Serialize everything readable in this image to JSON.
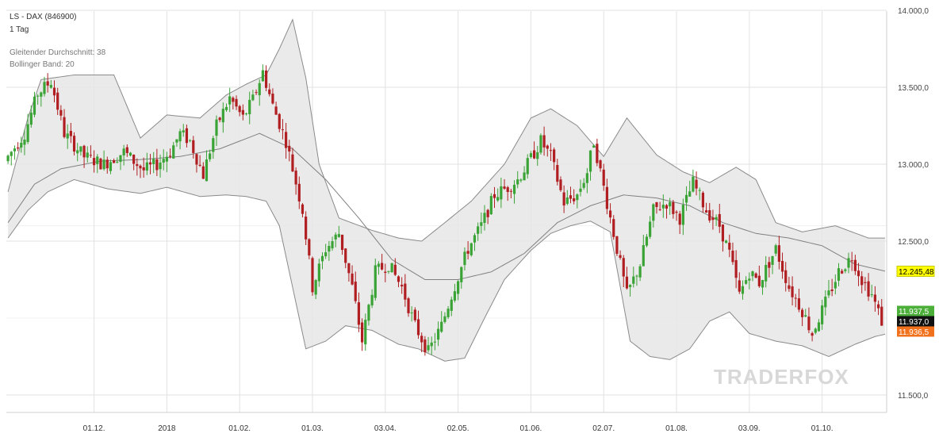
{
  "header": {
    "instrument": "LS - DAX (846900)",
    "interval": "1 Tag",
    "indicator_ma": "Gleitender Durchschnitt: 38",
    "indicator_bb": "Bollinger Band: 20"
  },
  "watermark": "TRADERFOX",
  "colors": {
    "bullish": "#3aa335",
    "bearish": "#b01e22",
    "band_fill": "#e6e6e6",
    "band_line": "#8a8a8a",
    "ma_line": "#808080",
    "grid": "#e2e2e2",
    "label_current_bg": "#ffff00",
    "label_bid_bg": "#4caf3a",
    "label_last_bg": "#111111",
    "label_ask_bg": "#f2711c"
  },
  "chart_data": {
    "type": "candlestick",
    "title": "LS - DAX (846900)",
    "interval": "1 Tag",
    "x_ticks": [
      "01.12.",
      "2018",
      "01.02.",
      "01.03.",
      "03.04.",
      "02.05.",
      "01.06.",
      "02.07.",
      "01.08.",
      "03.09.",
      "01.10."
    ],
    "y_ticks": [
      "14.000,0",
      "13.500,0",
      "13.000,0",
      "12.500,0",
      "11.500,0"
    ],
    "y_tick_values": [
      14000,
      13500,
      13000,
      12500,
      11500
    ],
    "ylim": [
      11350,
      14000
    ],
    "grid": true,
    "price_labels": [
      {
        "text": "12.245,48",
        "value": 12245.48,
        "role": "current"
      },
      {
        "text": "11.937,5",
        "value": 11937.5,
        "role": "bid"
      },
      {
        "text": "11.937,0",
        "value": 11937.0,
        "role": "last"
      },
      {
        "text": "11.936,5",
        "value": 11936.5,
        "role": "ask"
      }
    ],
    "price_path": [
      [
        0,
        13020
      ],
      [
        6,
        13200
      ],
      [
        10,
        13460
      ],
      [
        14,
        13540
      ],
      [
        18,
        13200
      ],
      [
        24,
        13050
      ],
      [
        30,
        13000
      ],
      [
        36,
        13080
      ],
      [
        42,
        12960
      ],
      [
        46,
        13000
      ],
      [
        50,
        13080
      ],
      [
        53,
        13200
      ],
      [
        56,
        13150
      ],
      [
        60,
        12930
      ],
      [
        64,
        13250
      ],
      [
        68,
        13430
      ],
      [
        72,
        13300
      ],
      [
        75,
        13420
      ],
      [
        78,
        13600
      ],
      [
        81,
        13380
      ],
      [
        85,
        13150
      ],
      [
        90,
        12700
      ],
      [
        93,
        12200
      ],
      [
        97,
        12450
      ],
      [
        101,
        12550
      ],
      [
        105,
        12200
      ],
      [
        108,
        11850
      ],
      [
        112,
        12300
      ],
      [
        116,
        12350
      ],
      [
        120,
        12200
      ],
      [
        124,
        11950
      ],
      [
        128,
        11780
      ],
      [
        132,
        11950
      ],
      [
        135,
        12150
      ],
      [
        140,
        12450
      ],
      [
        144,
        12600
      ],
      [
        148,
        12800
      ],
      [
        152,
        12850
      ],
      [
        155,
        12900
      ],
      [
        158,
        13000
      ],
      [
        162,
        13150
      ],
      [
        165,
        13050
      ],
      [
        169,
        12750
      ],
      [
        173,
        12800
      ],
      [
        176,
        12950
      ],
      [
        178,
        13150
      ],
      [
        181,
        12850
      ],
      [
        185,
        12450
      ],
      [
        188,
        12150
      ],
      [
        192,
        12350
      ],
      [
        196,
        12700
      ],
      [
        200,
        12750
      ],
      [
        204,
        12650
      ],
      [
        208,
        12880
      ],
      [
        212,
        12700
      ],
      [
        216,
        12600
      ],
      [
        219,
        12420
      ],
      [
        222,
        12150
      ],
      [
        225,
        12300
      ],
      [
        228,
        12230
      ],
      [
        233,
        12450
      ],
      [
        237,
        12200
      ],
      [
        241,
        12050
      ],
      [
        244,
        11900
      ],
      [
        248,
        12100
      ],
      [
        252,
        12300
      ],
      [
        256,
        12400
      ],
      [
        259,
        12250
      ],
      [
        262,
        12150
      ],
      [
        265,
        11980
      ]
    ],
    "ma38": [
      [
        0,
        12620
      ],
      [
        8,
        12870
      ],
      [
        16,
        12970
      ],
      [
        28,
        13020
      ],
      [
        40,
        13030
      ],
      [
        52,
        13050
      ],
      [
        64,
        13100
      ],
      [
        76,
        13200
      ],
      [
        86,
        13100
      ],
      [
        96,
        12900
      ],
      [
        106,
        12650
      ],
      [
        116,
        12380
      ],
      [
        126,
        12250
      ],
      [
        136,
        12250
      ],
      [
        146,
        12300
      ],
      [
        156,
        12420
      ],
      [
        166,
        12620
      ],
      [
        176,
        12730
      ],
      [
        186,
        12800
      ],
      [
        196,
        12780
      ],
      [
        206,
        12730
      ],
      [
        216,
        12620
      ],
      [
        226,
        12550
      ],
      [
        236,
        12520
      ],
      [
        246,
        12470
      ],
      [
        256,
        12350
      ],
      [
        266,
        12300
      ]
    ],
    "bb_upper": [
      [
        0,
        12820
      ],
      [
        6,
        13300
      ],
      [
        10,
        13550
      ],
      [
        20,
        13580
      ],
      [
        32,
        13580
      ],
      [
        40,
        13170
      ],
      [
        48,
        13320
      ],
      [
        58,
        13300
      ],
      [
        66,
        13450
      ],
      [
        72,
        13520
      ],
      [
        78,
        13580
      ],
      [
        82,
        13750
      ],
      [
        86,
        13940
      ],
      [
        90,
        13560
      ],
      [
        94,
        13000
      ],
      [
        100,
        12650
      ],
      [
        110,
        12570
      ],
      [
        118,
        12520
      ],
      [
        125,
        12500
      ],
      [
        132,
        12620
      ],
      [
        140,
        12760
      ],
      [
        150,
        13000
      ],
      [
        158,
        13300
      ],
      [
        164,
        13360
      ],
      [
        172,
        13250
      ],
      [
        180,
        13050
      ],
      [
        187,
        13300
      ],
      [
        196,
        13060
      ],
      [
        204,
        12950
      ],
      [
        212,
        12880
      ],
      [
        220,
        12980
      ],
      [
        226,
        12900
      ],
      [
        232,
        12620
      ],
      [
        240,
        12560
      ],
      [
        250,
        12600
      ],
      [
        260,
        12520
      ],
      [
        266,
        12520
      ]
    ],
    "bb_lower": [
      [
        0,
        12520
      ],
      [
        6,
        12700
      ],
      [
        12,
        12820
      ],
      [
        20,
        12900
      ],
      [
        30,
        12840
      ],
      [
        40,
        12810
      ],
      [
        48,
        12850
      ],
      [
        58,
        12790
      ],
      [
        66,
        12800
      ],
      [
        72,
        12790
      ],
      [
        78,
        12760
      ],
      [
        82,
        12600
      ],
      [
        86,
        12200
      ],
      [
        90,
        11800
      ],
      [
        96,
        11850
      ],
      [
        102,
        11950
      ],
      [
        110,
        11920
      ],
      [
        118,
        11830
      ],
      [
        124,
        11800
      ],
      [
        132,
        11720
      ],
      [
        138,
        11740
      ],
      [
        144,
        12000
      ],
      [
        150,
        12250
      ],
      [
        158,
        12440
      ],
      [
        164,
        12550
      ],
      [
        170,
        12600
      ],
      [
        176,
        12630
      ],
      [
        182,
        12560
      ],
      [
        188,
        11850
      ],
      [
        194,
        11750
      ],
      [
        200,
        11730
      ],
      [
        206,
        11800
      ],
      [
        212,
        11980
      ],
      [
        218,
        12040
      ],
      [
        224,
        11900
      ],
      [
        232,
        11850
      ],
      [
        240,
        11820
      ],
      [
        248,
        11750
      ],
      [
        256,
        11830
      ],
      [
        262,
        11880
      ],
      [
        266,
        11900
      ]
    ]
  }
}
